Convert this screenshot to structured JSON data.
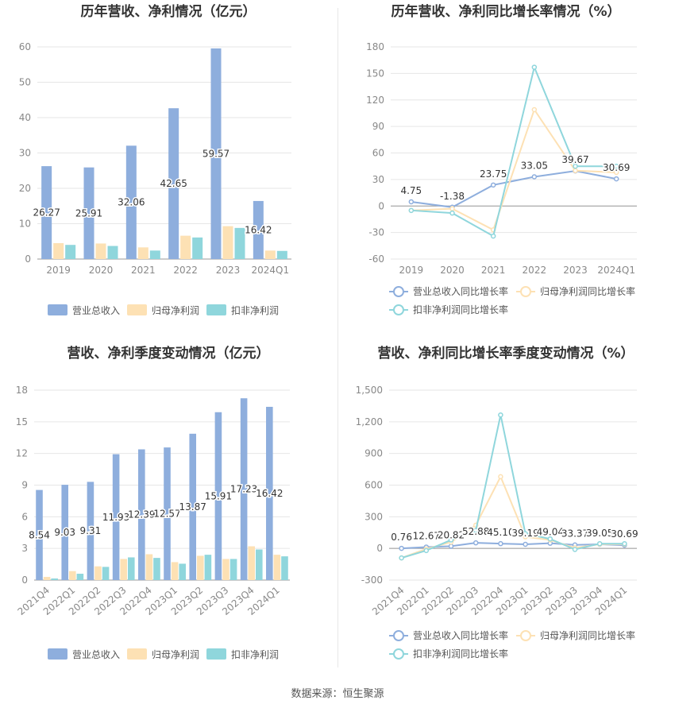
{
  "source_text": "数据来源：恒生聚源",
  "chart_data": [
    {
      "type": "bar",
      "title": "历年营收、净利情况（亿元）",
      "categories": [
        "2019",
        "2020",
        "2021",
        "2022",
        "2023",
        "2024Q1"
      ],
      "ylim": [
        0,
        60
      ],
      "yticks": [
        0,
        10,
        20,
        30,
        40,
        50,
        60
      ],
      "grid": true,
      "legend_position": "bottom",
      "series": [
        {
          "name": "营业总收入",
          "color": "#8eaedd",
          "values": [
            26.27,
            25.91,
            32.06,
            42.65,
            59.57,
            16.42
          ],
          "labels": [
            "26.27",
            "25.91",
            "32.06",
            "42.65",
            "59.57",
            "16.42"
          ]
        },
        {
          "name": "归母净利润",
          "color": "#fde1b4",
          "values": [
            4.5,
            4.4,
            3.3,
            6.6,
            9.3,
            2.4
          ]
        },
        {
          "name": "扣非净利润",
          "color": "#8fd6dc",
          "values": [
            4.0,
            3.7,
            2.4,
            6.1,
            8.8,
            2.3
          ]
        }
      ]
    },
    {
      "type": "line",
      "title": "历年营收、净利同比增长率情况（%）",
      "categories": [
        "2019",
        "2020",
        "2021",
        "2022",
        "2023",
        "2024Q1"
      ],
      "ylim": [
        -60,
        180
      ],
      "yticks": [
        -60,
        -30,
        0,
        30,
        60,
        90,
        120,
        150,
        180
      ],
      "grid": true,
      "legend_position": "bottom",
      "series": [
        {
          "name": "营业总收入同比增长率",
          "color": "#8eaedd",
          "values": [
            4.75,
            -1.38,
            23.75,
            33.05,
            39.67,
            30.69
          ],
          "labels": [
            "4.75",
            "-1.38",
            "23.75",
            "33.05",
            "39.67",
            "30.69"
          ]
        },
        {
          "name": "归母净利润同比增长率",
          "color": "#fde1b4",
          "values": [
            -5,
            -3,
            -27,
            109,
            40,
            38
          ]
        },
        {
          "name": "扣非净利润同比增长率",
          "color": "#8fd6dc",
          "values": [
            -5,
            -8,
            -34,
            157,
            45,
            45
          ]
        }
      ]
    },
    {
      "type": "bar",
      "title": "营收、净利季度变动情况（亿元）",
      "categories": [
        "2021Q4",
        "2022Q1",
        "2022Q2",
        "2022Q3",
        "2022Q4",
        "2023Q1",
        "2023Q2",
        "2023Q3",
        "2023Q4",
        "2024Q1"
      ],
      "ylim": [
        0,
        18
      ],
      "yticks": [
        0,
        3,
        6,
        9,
        12,
        15,
        18
      ],
      "grid": true,
      "legend_position": "bottom",
      "series": [
        {
          "name": "营业总收入",
          "color": "#8eaedd",
          "values": [
            8.54,
            9.03,
            9.31,
            11.93,
            12.39,
            12.57,
            13.87,
            15.91,
            17.23,
            16.42
          ],
          "labels": [
            "8.54",
            "9.03",
            "9.31",
            "11.93",
            "12.39",
            "12.57",
            "13.87",
            "15.91",
            "17.23",
            "16.42"
          ]
        },
        {
          "name": "归母净利润",
          "color": "#fde1b4",
          "values": [
            0.3,
            0.85,
            1.3,
            2.0,
            2.45,
            1.7,
            2.3,
            2.0,
            3.2,
            2.4
          ]
        },
        {
          "name": "扣非净利润",
          "color": "#8fd6dc",
          "values": [
            0.15,
            0.6,
            1.25,
            2.15,
            2.1,
            1.55,
            2.4,
            2.0,
            2.9,
            2.25
          ]
        }
      ]
    },
    {
      "type": "line",
      "title": "营收、净利同比增长率季度变动情况（%）",
      "categories": [
        "2021Q4",
        "2022Q1",
        "2022Q2",
        "2022Q3",
        "2022Q4",
        "2023Q1",
        "2023Q2",
        "2023Q3",
        "2023Q4",
        "2024Q1"
      ],
      "ylim": [
        -300,
        1500
      ],
      "yticks": [
        -300,
        0,
        300,
        600,
        900,
        1200,
        1500
      ],
      "ytick_labels": [
        "-300",
        "0",
        "300",
        "600",
        "900",
        "1,200",
        "1,500"
      ],
      "grid": true,
      "legend_position": "bottom",
      "series": [
        {
          "name": "营业总收入同比增长率",
          "color": "#8eaedd",
          "values": [
            0.76,
            12.67,
            20.82,
            52.88,
            45.1,
            39.19,
            49.04,
            33.37,
            39.05,
            30.69
          ],
          "labels": [
            "0.76",
            "12.67",
            "20.82",
            "52.88",
            "45.10",
            "39.19",
            "49.04",
            "33.37",
            "39.05",
            "30.69"
          ]
        },
        {
          "name": "归母净利润同比增长率",
          "color": "#fde1b4",
          "values": [
            -90,
            -5,
            60,
            220,
            680,
            110,
            80,
            5,
            40,
            40
          ]
        },
        {
          "name": "扣非净利润同比增长率",
          "color": "#8fd6dc",
          "values": [
            -90,
            -20,
            80,
            170,
            1265,
            140,
            90,
            -10,
            45,
            45
          ]
        }
      ]
    }
  ]
}
